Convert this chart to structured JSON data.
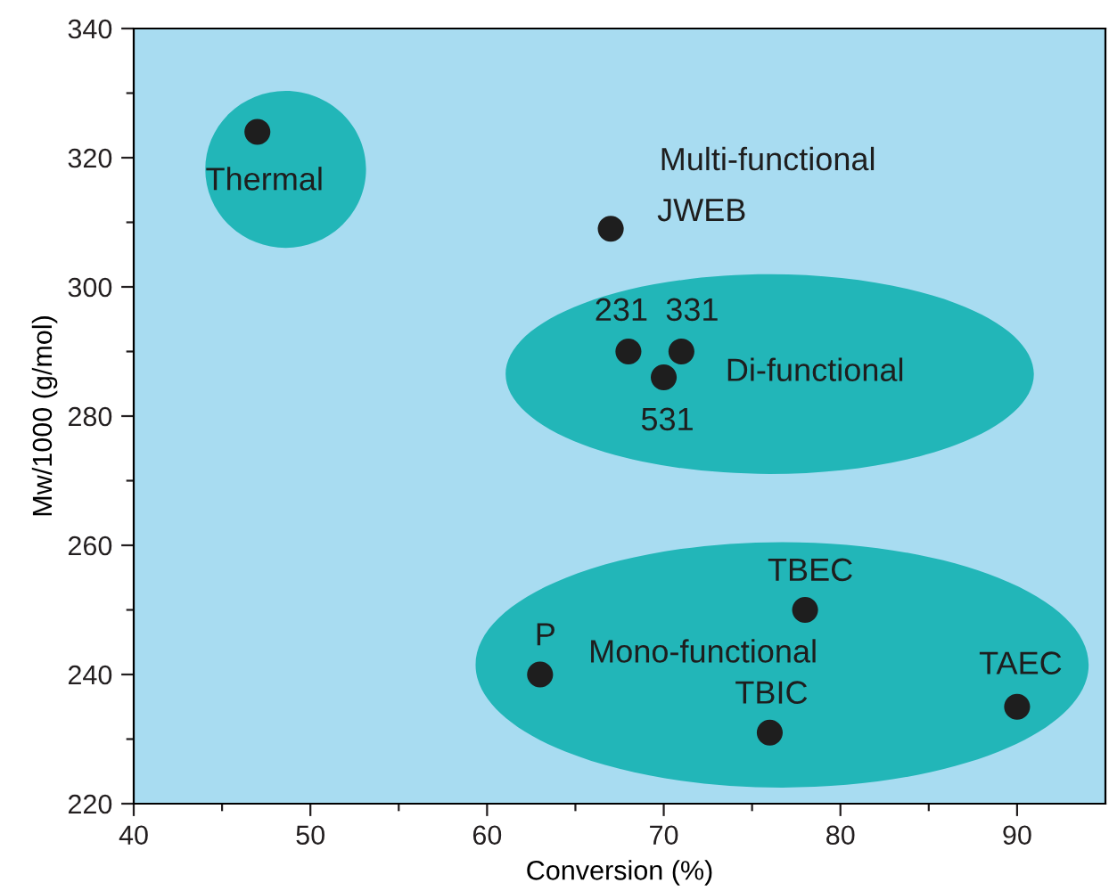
{
  "chart_data": {
    "type": "scatter",
    "xlabel": "Conversion (%)",
    "ylabel": "Mw/1000 (g/mol)",
    "x": [
      47,
      67,
      68,
      71,
      70,
      78,
      63,
      76,
      90
    ],
    "values": [
      324,
      309,
      290,
      290,
      286,
      250,
      240,
      231,
      235
    ],
    "color": "#1e1e1e",
    "marker": "circle",
    "grid": false,
    "legend": false,
    "xlim": [
      40,
      95
    ],
    "ylim": [
      220,
      340
    ],
    "xticks": [
      40,
      {
        "value": 45,
        "label": null
      },
      50,
      {
        "value": 55,
        "label": null
      },
      60,
      {
        "value": 65,
        "label": null
      },
      70,
      {
        "value": 75,
        "label": null
      },
      80,
      {
        "value": 85,
        "label": null
      },
      90
    ],
    "yticks": [
      220,
      {
        "value": 230,
        "label": null
      },
      240,
      {
        "value": 250,
        "label": null
      },
      260,
      {
        "value": 270,
        "label": null
      },
      280,
      {
        "value": 290,
        "label": null
      },
      300,
      {
        "value": 310,
        "label": null
      },
      320,
      {
        "value": 330,
        "label": null
      },
      340
    ],
    "annotations": [
      {
        "text": "Thermal",
        "x": 47,
        "y": 324
      },
      "Multi-functional",
      {
        "text": "JWEB",
        "x": 67,
        "y": 309
      },
      {
        "text": "231",
        "x": 68,
        "y": 290
      },
      {
        "text": "331",
        "x": 71,
        "y": 290
      },
      {
        "text": "531",
        "x": 70,
        "y": 286
      },
      "Di-functional",
      {
        "text": "TBEC",
        "x": 78,
        "y": 250
      },
      {
        "text": "P",
        "x": 63,
        "y": 240
      },
      "Mono-functional",
      {
        "text": "TBIC",
        "x": 76,
        "y": 231
      },
      {
        "text": "TAEC",
        "x": 90,
        "y": 235
      }
    ]
  }
}
